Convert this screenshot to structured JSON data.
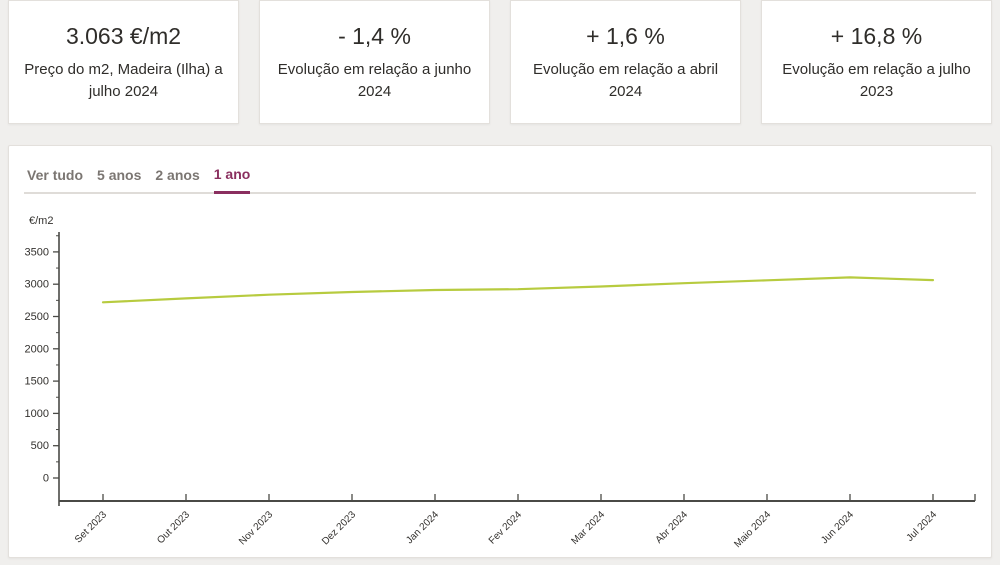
{
  "colors": {
    "accent": "#8a2f5f",
    "line": "#b7cb3f",
    "page_bg": "#f0efed",
    "axis": "#4a4a46",
    "text": "#33312e"
  },
  "cards": [
    {
      "value": "3.063 €/m2",
      "label": "Preço do m2, Madeira (Ilha) a julho 2024"
    },
    {
      "value": "- 1,4 %",
      "label": "Evolução em relação a junho 2024"
    },
    {
      "value": "+ 1,6 %",
      "label": "Evolução em relação a abril 2024"
    },
    {
      "value": "+ 16,8 %",
      "label": "Evolução em relação a julho 2023"
    }
  ],
  "tabs": {
    "items": [
      {
        "label": "Ver tudo"
      },
      {
        "label": "5 anos"
      },
      {
        "label": "2 anos"
      },
      {
        "label": "1 ano"
      }
    ],
    "active_index": 3
  },
  "chart_data": {
    "type": "line",
    "title": "",
    "xlabel": "",
    "ylabel": "€/m2",
    "categories": [
      "Set 2023",
      "Out 2023",
      "Nov 2023",
      "Dez 2023",
      "Jan 2024",
      "Fev 2024",
      "Mar 2024",
      "Abr 2024",
      "Maio 2024",
      "Jun 2024",
      "Jul 2024"
    ],
    "series": [
      {
        "name": "Preço do m2",
        "values": [
          2720,
          2780,
          2838,
          2880,
          2910,
          2922,
          2965,
          3015,
          3060,
          3106,
          3063
        ]
      }
    ],
    "y_ticks": [
      0,
      500,
      1000,
      1500,
      2000,
      2500,
      3000,
      3500
    ],
    "y_minor_tick_step": 250,
    "ylim": [
      0,
      3800
    ],
    "grid": false,
    "legend": false,
    "line_color": "#b7cb3f",
    "x_label_rotation": -45
  }
}
